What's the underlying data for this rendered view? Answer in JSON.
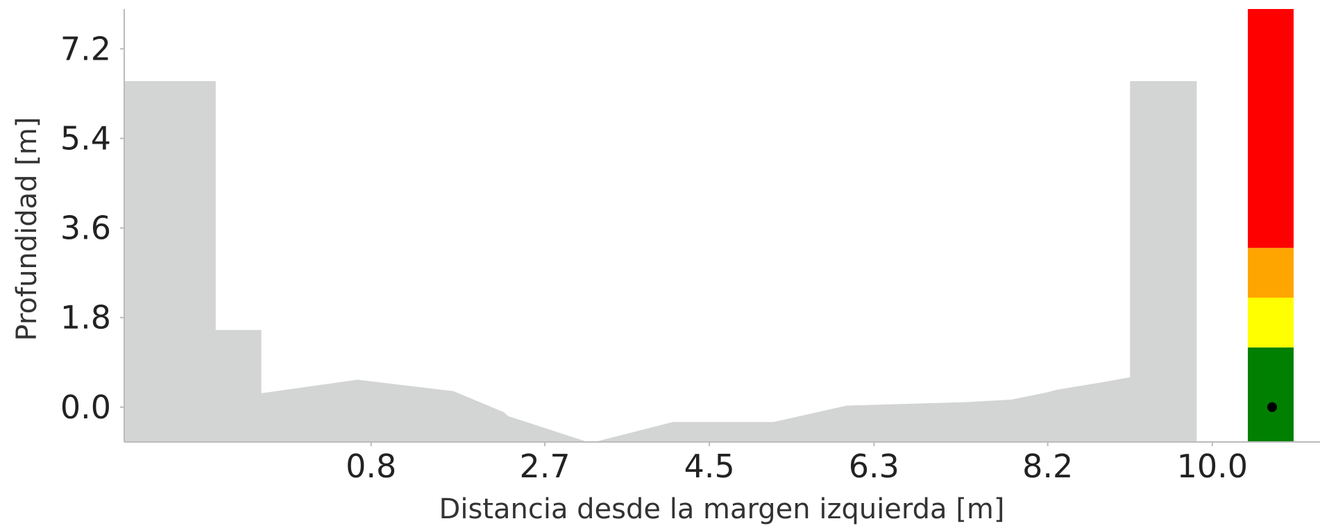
{
  "chart_data": {
    "type": "area",
    "title": "",
    "xlabel": "Distancia desde la margen izquierda [m]",
    "ylabel": "Profundidad [m]",
    "xlim": [
      -1.9,
      10.1
    ],
    "ylim": [
      -0.7,
      8.0
    ],
    "xticks": [
      0.8,
      2.7,
      4.5,
      6.3,
      8.2,
      10.0
    ],
    "xtick_labels": [
      "0.8",
      "2.7",
      "4.5",
      "6.3",
      "8.2",
      "10.0"
    ],
    "yticks": [
      0.0,
      1.8,
      3.6,
      5.4,
      7.2
    ],
    "ytick_labels": [
      "0.0",
      "1.8",
      "3.6",
      "5.4",
      "7.2"
    ],
    "grid": false,
    "cross_section": {
      "x": [
        -1.9,
        -0.9,
        -0.9,
        -0.4,
        -0.4,
        0.65,
        1.7,
        2.25,
        2.3,
        3.2,
        4.1,
        4.5,
        5.2,
        6.0,
        6.9,
        7.3,
        7.8,
        8.2,
        8.3,
        8.8,
        9.1,
        9.1,
        9.83,
        9.83
      ],
      "y": [
        6.55,
        6.55,
        1.55,
        1.55,
        0.28,
        0.55,
        0.32,
        -0.1,
        -0.18,
        -0.72,
        -0.3,
        -0.3,
        -0.3,
        0.03,
        0.08,
        0.1,
        0.15,
        0.3,
        0.35,
        0.5,
        0.6,
        6.55,
        6.55,
        -0.7
      ],
      "color": "#d3d4d4"
    },
    "gauge": {
      "bands": [
        {
          "from": -0.7,
          "to": 1.2,
          "color": "#008000"
        },
        {
          "from": 1.2,
          "to": 2.2,
          "color": "#ffff00"
        },
        {
          "from": 2.2,
          "to": 3.2,
          "color": "#ffa500"
        },
        {
          "from": 3.2,
          "to": 8.0,
          "color": "#ff0000"
        }
      ],
      "marker": {
        "y": 0.0,
        "color": "#000000"
      }
    },
    "axis_color": "#bbbbbb"
  }
}
